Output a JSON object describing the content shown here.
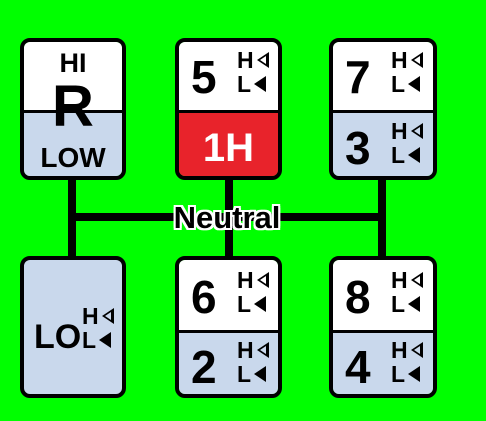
{
  "neutral_label": "Neutral",
  "reverse": {
    "hi": "HI",
    "gear": "R",
    "low": "LOW"
  },
  "low_gear": {
    "label": "LO",
    "h": "H",
    "l": "L"
  },
  "gears": [
    {
      "id": "5",
      "top": "5",
      "h": "H",
      "l": "L",
      "bottom": "1H"
    },
    {
      "id": "7",
      "top": "7",
      "h": "H",
      "l": "L"
    },
    {
      "id": "3",
      "top": "3",
      "h": "H",
      "l": "L"
    },
    {
      "id": "6",
      "top": "6",
      "h": "H",
      "l": "L"
    },
    {
      "id": "2",
      "top": "2",
      "h": "H",
      "l": "L"
    },
    {
      "id": "8",
      "top": "8",
      "h": "H",
      "l": "L"
    },
    {
      "id": "4",
      "top": "4",
      "h": "H",
      "l": "L"
    }
  ],
  "colors": {
    "background": "#00ff00",
    "blue": "#c9d8ec",
    "red": "#e8232b"
  }
}
